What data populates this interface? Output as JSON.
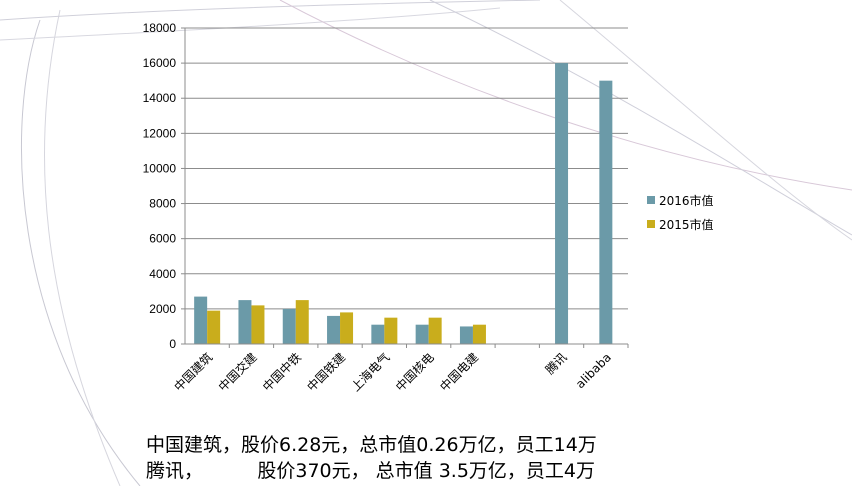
{
  "colors": {
    "series_2016": "#6b9aa8",
    "series_2015": "#c9ad1c",
    "gridline": "#8c8c8c",
    "axis": "#8c8c8c",
    "decoration": "#c8c8d2"
  },
  "chart_data": {
    "type": "bar",
    "categories": [
      "中国建筑",
      "中国交建",
      "中国中铁",
      "中国铁建",
      "上海电气",
      "中国核电",
      "中国电建",
      "",
      "腾讯",
      "alibaba"
    ],
    "series": [
      {
        "name": "2016市值",
        "values": [
          2700,
          2500,
          2000,
          1600,
          1100,
          1100,
          1000,
          null,
          16000,
          15000
        ]
      },
      {
        "name": "2015市值",
        "values": [
          1900,
          2200,
          2500,
          1800,
          1500,
          1500,
          1100,
          null,
          null,
          null
        ]
      }
    ],
    "yticks": [
      "0",
      "2000",
      "4000",
      "6000",
      "8000",
      "10000",
      "12000",
      "14000",
      "16000",
      "18000"
    ],
    "ylim": [
      0,
      18000
    ],
    "grid": true,
    "legend_position": "right"
  },
  "caption": {
    "line1": "中国建筑，股价6.28元，总市值0.26万亿，员工14万",
    "line2": "腾讯，         股价370元， 总市值 3.5万亿，员工4万"
  }
}
